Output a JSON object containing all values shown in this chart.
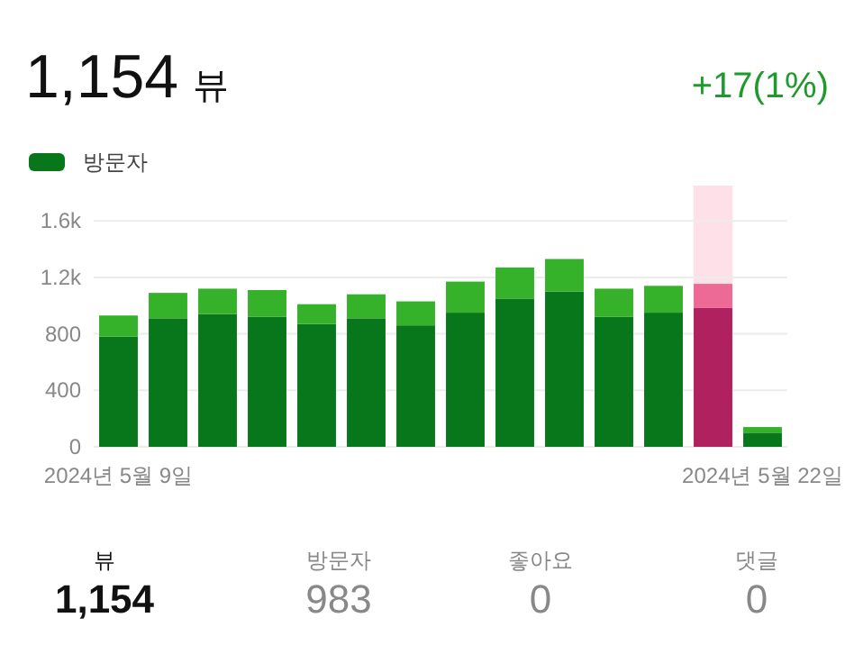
{
  "chart_data": {
    "type": "bar",
    "title": "1,154",
    "subtitle": "뷰",
    "stacked": true,
    "x": [
      "2024-05-09",
      "2024-05-10",
      "2024-05-11",
      "2024-05-12",
      "2024-05-13",
      "2024-05-14",
      "2024-05-15",
      "2024-05-16",
      "2024-05-17",
      "2024-05-18",
      "2024-05-19",
      "2024-05-20",
      "2024-05-21",
      "2024-05-22"
    ],
    "series": [
      {
        "name": "방문자",
        "color": "#08761a",
        "colors": [
          null,
          null,
          null,
          null,
          null,
          null,
          null,
          null,
          null,
          null,
          null,
          null,
          "#b0215f",
          null
        ],
        "values": [
          780,
          910,
          940,
          920,
          870,
          910,
          860,
          950,
          1050,
          1100,
          920,
          950,
          983,
          100
        ]
      },
      {
        "color": "#35b12a",
        "colors": [
          null,
          null,
          null,
          null,
          null,
          null,
          null,
          null,
          null,
          null,
          null,
          null,
          "#ee6a96",
          null
        ],
        "values": [
          150,
          180,
          180,
          190,
          140,
          170,
          170,
          220,
          220,
          230,
          200,
          190,
          171,
          40
        ]
      }
    ],
    "xlim": [
      "2024-05-08T12:00",
      "2024-05-22T12:00"
    ],
    "xticks": [
      {
        "value": "2024-05-09",
        "label": "2024년 5월 9일"
      },
      {
        "value": "2024-05-22",
        "label": "2024년 5월 22일"
      }
    ],
    "ylim": [
      0,
      1850
    ],
    "yticks": [
      0,
      400,
      800,
      {
        "value": 1200,
        "label": "1.2k"
      },
      {
        "value": 1600,
        "label": "1.6k"
      }
    ],
    "grid": "y",
    "legend": "top left",
    "bands": [
      {
        "axis": "x",
        "from": "2024-05-20T14:30",
        "to": "2024-05-21T09:30",
        "color": "#fde0e8"
      }
    ],
    "annotations": [
      "+17(1%)",
      "뷰",
      "1,154",
      "방문자",
      "983",
      "좋아요",
      "0",
      "댓글",
      "0"
    ]
  }
}
